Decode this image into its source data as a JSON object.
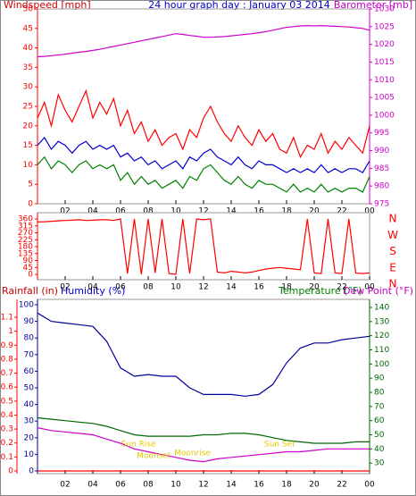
{
  "chart_data": [
    {
      "type": "line",
      "title": "24 hour graph day : January 03 2014",
      "ylabel": "Windspeed [mph]",
      "y2label": "Barometer [mb]",
      "x": [
        0,
        0.5,
        1,
        1.5,
        2,
        2.5,
        3,
        3.5,
        4,
        4.5,
        5,
        5.5,
        6,
        6.5,
        7,
        7.5,
        8,
        8.5,
        9,
        9.5,
        10,
        10.5,
        11,
        11.5,
        12,
        12.5,
        13,
        13.5,
        14,
        14.5,
        15,
        15.5,
        16,
        16.5,
        17,
        17.5,
        18,
        18.5,
        19,
        19.5,
        20,
        20.5,
        21,
        21.5,
        22,
        22.5,
        23,
        23.5,
        24
      ],
      "xlim": [
        0,
        24
      ],
      "xticks": [
        {
          "value": 2,
          "label": "02"
        },
        {
          "value": 4,
          "label": "04"
        },
        {
          "value": 6,
          "label": "06"
        },
        {
          "value": 8,
          "label": "08"
        },
        {
          "value": 10,
          "label": "10"
        },
        12,
        14,
        16,
        18,
        20,
        22,
        {
          "value": 24,
          "label": "00"
        }
      ],
      "ylim": [
        0,
        50
      ],
      "yticks": [
        0,
        5,
        10,
        15,
        20,
        25,
        30,
        35,
        40,
        45,
        50
      ],
      "y2lim": [
        975,
        1030
      ],
      "y2ticks": [
        975,
        980,
        985,
        990,
        995,
        1000,
        1005,
        1010,
        1015,
        1020,
        1025,
        1030
      ],
      "series": [
        {
          "color": "#ff0000",
          "axis": "y",
          "values": [
            22,
            26,
            20,
            28,
            24,
            21,
            25,
            29,
            22,
            26,
            23,
            27,
            20,
            24,
            18,
            21,
            16,
            19,
            15,
            17,
            18,
            14,
            19,
            17,
            22,
            25,
            21,
            18,
            16,
            20,
            17,
            15,
            19,
            16,
            18,
            14,
            13,
            17,
            12,
            15,
            14,
            18,
            13,
            16,
            14,
            17,
            15,
            13,
            20
          ]
        },
        {
          "color": "#0000cc",
          "axis": "y",
          "values": [
            15,
            17,
            14,
            16,
            15,
            13,
            15,
            16,
            14,
            15,
            14,
            15,
            12,
            13,
            11,
            12,
            10,
            11,
            9,
            10,
            11,
            9,
            12,
            11,
            13,
            14,
            12,
            11,
            10,
            12,
            10,
            9,
            11,
            10,
            10,
            9,
            8,
            9,
            8,
            9,
            8,
            10,
            8,
            9,
            8,
            9,
            9,
            8,
            11
          ]
        },
        {
          "color": "#008000",
          "axis": "y",
          "values": [
            10,
            12,
            9,
            11,
            10,
            8,
            10,
            11,
            9,
            10,
            9,
            10,
            6,
            8,
            5,
            7,
            5,
            6,
            4,
            5,
            6,
            4,
            7,
            6,
            9,
            10,
            8,
            6,
            5,
            7,
            5,
            4,
            6,
            5,
            5,
            4,
            3,
            5,
            3,
            4,
            3,
            5,
            3,
            4,
            3,
            4,
            4,
            3,
            7
          ]
        },
        {
          "color": "#cc00cc",
          "axis": "y2",
          "values": [
            1016.5,
            1016.6,
            1016.8,
            1017,
            1017.2,
            1017.5,
            1017.8,
            1018,
            1018.3,
            1018.6,
            1019,
            1019.4,
            1019.8,
            1020.2,
            1020.6,
            1021,
            1021.4,
            1021.8,
            1022.2,
            1022.6,
            1023,
            1022.8,
            1022.5,
            1022.3,
            1022,
            1022,
            1022.1,
            1022.2,
            1022.4,
            1022.6,
            1022.8,
            1023,
            1023.3,
            1023.6,
            1024,
            1024.4,
            1024.8,
            1025,
            1025.2,
            1025.3,
            1025.2,
            1025.3,
            1025.2,
            1025.1,
            1025,
            1024.9,
            1024.7,
            1024.5,
            1024
          ]
        }
      ]
    },
    {
      "type": "line",
      "x": [
        0,
        0.5,
        1,
        1.5,
        2,
        2.5,
        3,
        3.5,
        4,
        4.5,
        5,
        5.5,
        6,
        6.5,
        7,
        7.5,
        8,
        8.5,
        9,
        9.5,
        10,
        10.5,
        11,
        11.5,
        12,
        12.5,
        13,
        13.5,
        14,
        14.5,
        15,
        15.5,
        16,
        16.5,
        17,
        17.5,
        18,
        18.5,
        19,
        19.5,
        20,
        20.5,
        21,
        21.5,
        22,
        22.5,
        23,
        23.5,
        24
      ],
      "xlim": [
        0,
        24
      ],
      "xticks": [
        {
          "value": 2,
          "label": "02"
        },
        {
          "value": 4,
          "label": "04"
        },
        {
          "value": 6,
          "label": "06"
        },
        {
          "value": 8,
          "label": "08"
        },
        {
          "value": 10,
          "label": "10"
        },
        12,
        14,
        16,
        18,
        20,
        22,
        {
          "value": 24,
          "label": "00"
        }
      ],
      "ylim": [
        0,
        360
      ],
      "yticks": [
        0,
        45,
        90,
        135,
        180,
        225,
        270,
        315,
        360
      ],
      "y2lim": [
        0,
        360
      ],
      "y2ticks": [
        {
          "value": 360,
          "label": "N"
        },
        {
          "value": 270,
          "label": "W"
        },
        {
          "value": 180,
          "label": "S"
        },
        {
          "value": 90,
          "label": "E"
        },
        {
          "value": 0,
          "label": "N"
        }
      ],
      "series": [
        {
          "color": "#ff0000",
          "axis": "y",
          "values": [
            340,
            342,
            345,
            348,
            350,
            352,
            355,
            350,
            352,
            355,
            355,
            350,
            360,
            5,
            360,
            0,
            360,
            10,
            360,
            5,
            0,
            360,
            5,
            360,
            355,
            360,
            15,
            10,
            20,
            15,
            10,
            15,
            25,
            35,
            40,
            45,
            40,
            35,
            30,
            360,
            10,
            5,
            360,
            10,
            5,
            360,
            8,
            5,
            10
          ]
        }
      ]
    },
    {
      "type": "line",
      "y3label": "Rainfall (in)",
      "ylabel": "Humidity (%)",
      "y2label": "Temperature (°F)",
      "y2label_b": "Dew Point (°F)",
      "x": [
        0,
        1,
        2,
        3,
        4,
        5,
        6,
        7,
        8,
        9,
        10,
        11,
        12,
        13,
        14,
        15,
        16,
        17,
        18,
        19,
        20,
        21,
        22,
        23,
        24
      ],
      "xlim": [
        0,
        24
      ],
      "xticks": [
        {
          "value": 2,
          "label": "02"
        },
        {
          "value": 4,
          "label": "04"
        },
        {
          "value": 6,
          "label": "06"
        },
        {
          "value": 8,
          "label": "08"
        },
        {
          "value": 10,
          "label": "10"
        },
        12,
        14,
        16,
        18,
        20,
        22,
        {
          "value": 24,
          "label": "00"
        }
      ],
      "ylim": [
        0,
        100
      ],
      "yticks": [
        0,
        10,
        20,
        30,
        40,
        50,
        60,
        70,
        80,
        90,
        100
      ],
      "y3lim": [
        0,
        1.1
      ],
      "y3ticks": [
        0,
        0.1,
        0.2,
        0.3,
        0.4,
        0.5,
        0.6,
        0.7,
        0.8,
        0.9,
        1,
        1.1
      ],
      "y2lim": [
        20,
        140
      ],
      "y2ticks": [
        30,
        40,
        50,
        60,
        70,
        80,
        90,
        100,
        110,
        120,
        130,
        140
      ],
      "annotations": [
        {
          "text": "Sun Rise",
          "x": 7.3
        },
        {
          "text": "Moonset",
          "x": 8.4
        },
        {
          "text": "Moonrise",
          "x": 11.2
        },
        {
          "text": "Sun Set",
          "x": 17.5
        }
      ],
      "series": [
        {
          "color": "#ff0000",
          "axis": "y3",
          "values": [
            0,
            0,
            0,
            0,
            0,
            0,
            0,
            0,
            0,
            0,
            0,
            0,
            0,
            0,
            0,
            0,
            0,
            0,
            0,
            0,
            0,
            0,
            0,
            0,
            0
          ]
        },
        {
          "color": "#000099",
          "axis": "y",
          "values": [
            95,
            90,
            89,
            88,
            87,
            78,
            62,
            57,
            58,
            57,
            57,
            50,
            46,
            46,
            46,
            45,
            46,
            52,
            65,
            74,
            77,
            77,
            79,
            80,
            81
          ]
        },
        {
          "color": "#006600",
          "axis": "y2",
          "values": [
            62,
            61,
            60,
            59,
            58,
            56,
            53,
            50,
            49,
            49,
            49,
            49,
            50,
            50,
            51,
            51,
            50,
            48,
            46,
            45,
            44,
            44,
            44,
            45,
            45
          ]
        },
        {
          "color": "#cc00cc",
          "axis": "y2",
          "values": [
            55,
            53,
            52,
            51,
            50,
            47,
            44,
            40,
            38,
            36,
            34,
            32,
            31,
            33,
            34,
            35,
            36,
            37,
            38,
            38,
            39,
            40,
            40,
            40,
            40
          ]
        }
      ]
    }
  ]
}
